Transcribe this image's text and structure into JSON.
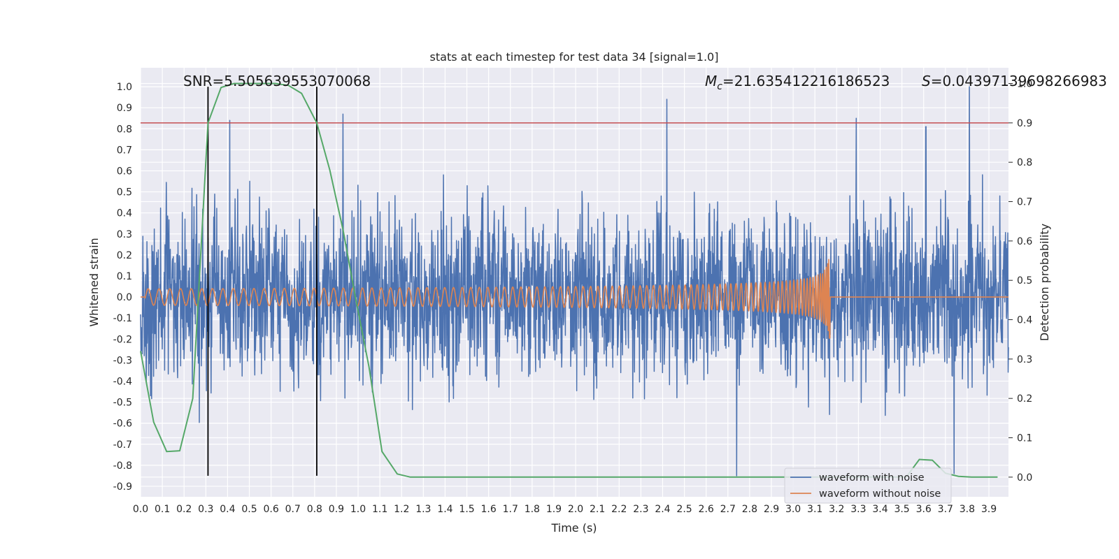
{
  "chart_data": {
    "type": "line",
    "title": "stats at each timestep for test data 34 [signal=1.0]",
    "xlabel": "Time (s)",
    "ylabel_left": "Whitened strain",
    "ylabel_right": "Detection probability",
    "xlim": [
      0.0,
      3.99
    ],
    "ylim_left": [
      -0.95,
      1.09
    ],
    "ylim_right": [
      -0.05,
      1.04
    ],
    "x_ticks": [
      "0.0",
      "0.1",
      "0.2",
      "0.3",
      "0.4",
      "0.5",
      "0.6",
      "0.7",
      "0.8",
      "0.9",
      "1.0",
      "1.1",
      "1.2",
      "1.3",
      "1.4",
      "1.5",
      "1.6",
      "1.7",
      "1.8",
      "1.9",
      "2.0",
      "2.1",
      "2.2",
      "2.3",
      "2.4",
      "2.5",
      "2.6",
      "2.7",
      "2.8",
      "2.9",
      "3.0",
      "3.1",
      "3.2",
      "3.3",
      "3.4",
      "3.5",
      "3.6",
      "3.7",
      "3.8",
      "3.9"
    ],
    "y_ticks_left": [
      "1.0",
      "0.9",
      "0.8",
      "0.7",
      "0.6",
      "0.5",
      "0.4",
      "0.3",
      "0.2",
      "0.1",
      "0.0",
      "-0.1",
      "-0.2",
      "-0.3",
      "-0.4",
      "-0.5",
      "-0.6",
      "-0.7",
      "-0.8",
      "-0.9"
    ],
    "y_ticks_right": [
      "1.0",
      "0.9",
      "0.8",
      "0.7",
      "0.6",
      "0.5",
      "0.4",
      "0.3",
      "0.2",
      "0.1",
      "0.0"
    ],
    "grid": true,
    "legend_position": "lower-right",
    "annotations": {
      "snr": "SNR=5.505639553070068",
      "mc_symbol": "M",
      "mc_sub": "c",
      "mc_value": "=21.635412216186523",
      "s_symbol": "S",
      "s_value": "=0.04397139698266983"
    },
    "threshold_line": {
      "axis": "right",
      "y": 0.9,
      "color": "#c44e52"
    },
    "vertical_markers": {
      "x": [
        0.31,
        0.81
      ],
      "y_from": -0.85,
      "y_to": 1.0,
      "color": "#000000"
    },
    "series": [
      {
        "name": "waveform with noise",
        "axis": "left",
        "color": "#4c72b0",
        "style": "noise",
        "amplitude_typical": 0.4,
        "notable_peaks": [
          [
            0.41,
            0.84
          ],
          [
            0.93,
            0.87
          ],
          [
            2.42,
            0.94
          ],
          [
            3.29,
            0.85
          ],
          [
            3.61,
            0.81
          ],
          [
            3.81,
            1.0
          ],
          [
            2.74,
            -0.85
          ],
          [
            3.74,
            -0.84
          ]
        ]
      },
      {
        "name": "waveform without noise",
        "axis": "left",
        "color": "#dd8452",
        "style": "chirp",
        "merger_time": 3.17,
        "peak_amplitude": 0.23
      },
      {
        "name": "detection probability",
        "axis": "right",
        "color": "#55a868",
        "x": [
          0.0,
          0.06,
          0.12,
          0.18,
          0.24,
          0.31,
          0.37,
          0.43,
          0.5,
          0.56,
          0.62,
          0.68,
          0.74,
          0.81,
          0.87,
          0.93,
          0.99,
          1.05,
          1.11,
          1.18,
          1.24,
          1.3,
          1.36,
          1.42,
          1.48,
          1.55,
          1.61,
          1.67,
          1.73,
          1.79,
          1.85,
          1.92,
          1.98,
          2.04,
          2.1,
          2.16,
          2.22,
          2.28,
          2.35,
          2.41,
          2.47,
          2.53,
          2.59,
          2.65,
          2.71,
          2.78,
          2.84,
          2.9,
          2.96,
          3.02,
          3.08,
          3.15,
          3.21,
          3.27,
          3.33,
          3.39,
          3.45,
          3.52,
          3.58,
          3.64,
          3.7,
          3.76,
          3.82,
          3.88,
          3.94
        ],
        "values": [
          0.32,
          0.14,
          0.065,
          0.067,
          0.2,
          0.9,
          0.99,
          1.0,
          1.0,
          1.0,
          1.0,
          0.995,
          0.975,
          0.9,
          0.78,
          0.63,
          0.45,
          0.28,
          0.065,
          0.008,
          0.0,
          0.0,
          0.0,
          0.0,
          0.0,
          0.0,
          0.0,
          0.0,
          0.0,
          0.0,
          0.0,
          0.0,
          0.0,
          0.0,
          0.0,
          0.0,
          0.0,
          0.0,
          0.0,
          0.0,
          0.0,
          0.0,
          0.0,
          0.0,
          0.0,
          0.0,
          0.0,
          0.0,
          0.0,
          0.0,
          0.0,
          0.0,
          0.0,
          0.0,
          0.0,
          0.0,
          0.0,
          0.0,
          0.045,
          0.043,
          0.01,
          0.002,
          0.0,
          0.0,
          0.0
        ]
      }
    ]
  }
}
